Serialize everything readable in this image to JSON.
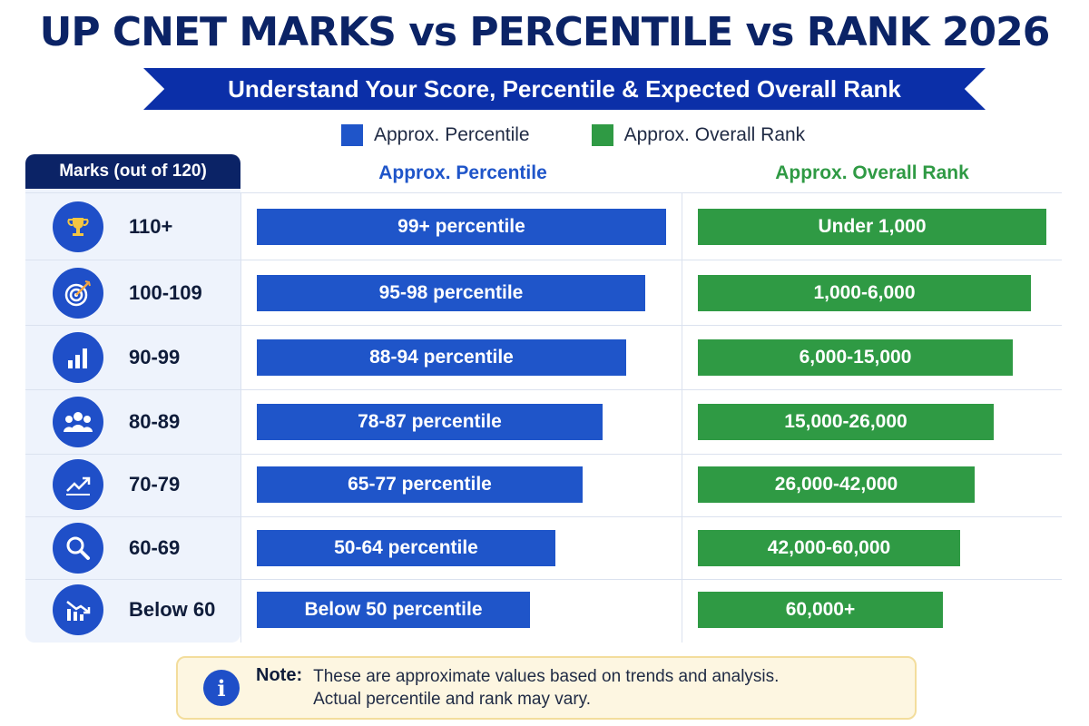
{
  "header": {
    "title": "UP CNET MARKS vs PERCENTILE vs RANK 2026",
    "subtitle": "Understand Your Score, Percentile & Expected Overall Rank"
  },
  "legend": [
    {
      "label": "Approx. Percentile",
      "color": "#1f55c9"
    },
    {
      "label": "Approx. Overall Rank",
      "color": "#2f9a44"
    }
  ],
  "table": {
    "marks_header": "Marks (out of 120)",
    "percentile_header": "Approx. Percentile",
    "rank_header": "Approx. Overall Rank"
  },
  "chart_data": {
    "type": "table",
    "title": "UP CNET MARKS vs PERCENTILE vs RANK 2026",
    "columns": [
      "Marks (out of 120)",
      "Approx. Percentile",
      "Approx. Overall Rank"
    ],
    "rows": [
      {
        "marks": "110+",
        "icon": "trophy-icon",
        "percentile": "99+ percentile",
        "rank": "Under 1,000",
        "percentile_bar": 1.0,
        "rank_bar": 1.0
      },
      {
        "marks": "100-109",
        "icon": "target-icon",
        "percentile": "95-98 percentile",
        "rank": "1,000-6,000",
        "percentile_bar": 0.948,
        "rank_bar": 0.957
      },
      {
        "marks": "90-99",
        "icon": "bar-chart-icon",
        "percentile": "88-94 percentile",
        "rank": "6,000-15,000",
        "percentile_bar": 0.903,
        "rank_bar": 0.904
      },
      {
        "marks": "80-89",
        "icon": "group-icon",
        "percentile": "78-87 percentile",
        "rank": "15,000-26,000",
        "percentile_bar": 0.845,
        "rank_bar": 0.848
      },
      {
        "marks": "70-79",
        "icon": "trend-up-icon",
        "percentile": "65-77 percentile",
        "rank": "26,000-42,000",
        "percentile_bar": 0.797,
        "rank_bar": 0.795
      },
      {
        "marks": "60-69",
        "icon": "magnifier-icon",
        "percentile": "50-64 percentile",
        "rank": "42,000-60,000",
        "percentile_bar": 0.73,
        "rank_bar": 0.752
      },
      {
        "marks": "Below 60",
        "icon": "trend-down-icon",
        "percentile": "Below 50 percentile",
        "rank": "60,000+",
        "percentile_bar": 0.668,
        "rank_bar": 0.704
      }
    ],
    "colors": {
      "percentile": "#1f55c9",
      "rank": "#2f9a44"
    }
  },
  "note": {
    "label": "Note:",
    "line1": "These are approximate values based on trends and analysis.",
    "line2": "Actual percentile and rank may vary.",
    "icon": "info-icon"
  }
}
